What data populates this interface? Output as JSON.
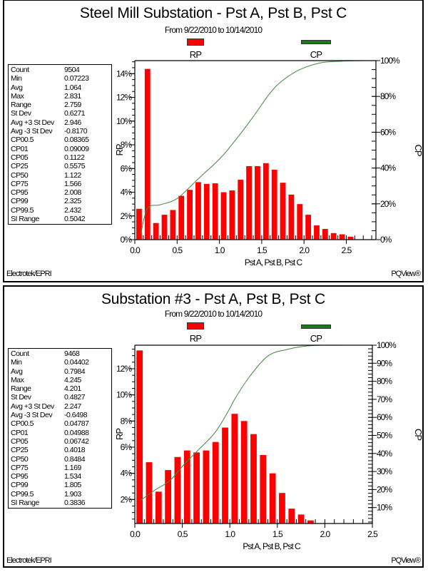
{
  "legend": {
    "rp_label": "RP",
    "cp_label": "CP",
    "rp_color": "#ff0000",
    "cp_color": "#1a7a1a"
  },
  "footer": {
    "left": "Electrotek/EPRI",
    "right": "PQView®"
  },
  "panels": [
    {
      "title": "Steel Mill Substation - Pst A, Pst B, Pst C",
      "subtitle": "From 9/22/2010 to 10/14/2010",
      "stats": [
        {
          "k": "Count",
          "v": "9504"
        },
        {
          "k": "Min",
          "v": "0.07223"
        },
        {
          "k": "Avg",
          "v": "1.064"
        },
        {
          "k": "Max",
          "v": "2.831"
        },
        {
          "k": "Range",
          "v": "2.759"
        },
        {
          "k": "St Dev",
          "v": "0.6271"
        },
        {
          "k": "Avg +3 St Dev",
          "v": "2.946"
        },
        {
          "k": "Avg -3 St Dev",
          "v": "-0.8170"
        },
        {
          "k": "CP00.5",
          "v": "0.08365"
        },
        {
          "k": "CP01",
          "v": "0.09009"
        },
        {
          "k": "CP05",
          "v": "0.1122"
        },
        {
          "k": "CP25",
          "v": "0.5575"
        },
        {
          "k": "CP50",
          "v": "1.122"
        },
        {
          "k": "CP75",
          "v": "1.566"
        },
        {
          "k": "CP95",
          "v": "2.008"
        },
        {
          "k": "CP99",
          "v": "2.325"
        },
        {
          "k": "CP99.5",
          "v": "2.432"
        },
        {
          "k": "SI Range",
          "v": "0.5042"
        }
      ]
    },
    {
      "title": "Substation #3 - Pst A, Pst B, Pst C",
      "subtitle": "From 9/22/2010 to 10/14/2010",
      "stats": [
        {
          "k": "Count",
          "v": "9468"
        },
        {
          "k": "Min",
          "v": "0.04402"
        },
        {
          "k": "Avg",
          "v": "0.7984"
        },
        {
          "k": "Max",
          "v": "4.245"
        },
        {
          "k": "Range",
          "v": "4.201"
        },
        {
          "k": "St Dev",
          "v": "0.4827"
        },
        {
          "k": "Avg +3 St Dev",
          "v": "2.247"
        },
        {
          "k": "Avg -3 St Dev",
          "v": "-0.6498"
        },
        {
          "k": "CP00.5",
          "v": "0.04787"
        },
        {
          "k": "CP01",
          "v": "0.04988"
        },
        {
          "k": "CP05",
          "v": "0.06742"
        },
        {
          "k": "CP25",
          "v": "0.4018"
        },
        {
          "k": "CP50",
          "v": "0.8484"
        },
        {
          "k": "CP75",
          "v": "1.169"
        },
        {
          "k": "CP95",
          "v": "1.534"
        },
        {
          "k": "CP99",
          "v": "1.805"
        },
        {
          "k": "CP99.5",
          "v": "1.903"
        },
        {
          "k": "SI Range",
          "v": "0.3836"
        }
      ]
    }
  ],
  "chart_data": [
    {
      "type": "bar",
      "title": "Steel Mill Substation - Pst A, Pst B, Pst C",
      "subtitle": "From 9/22/2010 to 10/14/2010",
      "xlabel": "Pst A, Pst B, Pst C",
      "ylabel": "RP",
      "y2label": "CP",
      "xlim": [
        0,
        2.85
      ],
      "ylim": [
        0,
        15.1
      ],
      "y2lim": [
        0,
        100
      ],
      "xticks": [
        0.0,
        0.5,
        1.0,
        1.5,
        2.0,
        2.5
      ],
      "xtick_labels": [
        "0.0",
        "0.5",
        "1.0",
        "1.5",
        "2.0",
        "2.5"
      ],
      "yticks": [
        0,
        2,
        4,
        6,
        8,
        10,
        12,
        14
      ],
      "ytick_labels": [
        "0%",
        "2%",
        "4%",
        "6%",
        "8%",
        "10%",
        "12%",
        "14%"
      ],
      "y2ticks": [
        0,
        20,
        40,
        60,
        80,
        100
      ],
      "y2tick_labels": [
        "0%",
        "20%",
        "40%",
        "60%",
        "80%",
        "100%"
      ],
      "y_minor_step": 0.5,
      "y2_minor_step": 5,
      "bin_width": 0.1,
      "legend": "top",
      "series": [
        {
          "name": "RP",
          "kind": "bar",
          "axis": "left",
          "x": [
            0.05,
            0.15,
            0.25,
            0.35,
            0.45,
            0.55,
            0.65,
            0.75,
            0.85,
            0.95,
            1.05,
            1.15,
            1.25,
            1.35,
            1.45,
            1.55,
            1.65,
            1.75,
            1.85,
            1.95,
            2.05,
            2.15,
            2.25,
            2.35,
            2.45,
            2.55
          ],
          "values": [
            2.6,
            14.4,
            1.4,
            2.1,
            2.5,
            3.7,
            4.2,
            4.85,
            4.7,
            4.75,
            4.0,
            4.15,
            5.05,
            6.2,
            6.2,
            6.45,
            5.9,
            4.8,
            3.8,
            3.0,
            2.1,
            1.2,
            0.9,
            0.55,
            0.45,
            0.25
          ]
        },
        {
          "name": "CP",
          "kind": "line",
          "axis": "right",
          "x": [
            0.07,
            0.15,
            0.3,
            0.5,
            0.75,
            1.0,
            1.18,
            1.39,
            1.6,
            1.75,
            1.95,
            2.2,
            2.45,
            2.7,
            2.83
          ],
          "values": [
            3,
            17.5,
            19.5,
            23,
            34,
            45,
            55,
            68,
            82,
            89,
            95,
            98.8,
            99.7,
            100,
            100
          ]
        }
      ]
    },
    {
      "type": "bar",
      "title": "Substation #3 - Pst A, Pst B, Pst C",
      "subtitle": "From 9/22/2010 to 10/14/2010",
      "xlabel": "Pst A, Pst B, Pst C",
      "ylabel": "RP",
      "y2label": "CP",
      "xlim": [
        0,
        2.5
      ],
      "ylim": [
        0,
        13.8
      ],
      "y2lim": [
        0,
        100
      ],
      "xticks": [
        0.0,
        0.5,
        1.0,
        1.5,
        2.0,
        2.5
      ],
      "xtick_labels": [
        "0.0",
        "0.5",
        "1.0",
        "1.5",
        "2.0",
        "2.5"
      ],
      "yticks": [
        2,
        4,
        6,
        8,
        10,
        12
      ],
      "ytick_labels": [
        "2%",
        "4%",
        "6%",
        "8%",
        "10%",
        "12%"
      ],
      "y2ticks": [
        10,
        20,
        30,
        40,
        50,
        60,
        70,
        80,
        90,
        100
      ],
      "y2tick_labels": [
        "10%",
        "20%",
        "30%",
        "40%",
        "50%",
        "60%",
        "70%",
        "80%",
        "90%",
        "100%"
      ],
      "y_minor_step": 0.5,
      "y2_minor_step": 2,
      "bin_width": 0.1,
      "legend": "top",
      "series": [
        {
          "name": "RP",
          "kind": "bar",
          "axis": "left",
          "x": [
            0.05,
            0.15,
            0.25,
            0.35,
            0.45,
            0.55,
            0.65,
            0.75,
            0.85,
            0.95,
            1.05,
            1.15,
            1.25,
            1.35,
            1.45,
            1.55,
            1.65,
            1.75,
            1.85
          ],
          "values": [
            13.4,
            4.85,
            2.6,
            4.25,
            5.25,
            5.75,
            5.6,
            5.75,
            6.4,
            7.5,
            8.55,
            8.0,
            7.0,
            5.4,
            4.0,
            2.5,
            1.3,
            0.85,
            0.4
          ]
        },
        {
          "name": "CP",
          "kind": "line",
          "axis": "right",
          "x": [
            0.06,
            0.22,
            0.37,
            0.52,
            0.67,
            0.85,
            1.0,
            1.05,
            1.2,
            1.4,
            1.6,
            1.8,
            2.0,
            2.2
          ],
          "values": [
            14,
            20,
            25,
            34,
            42,
            52,
            65,
            70,
            82,
            94,
            97.6,
            99.5,
            100,
            100
          ]
        }
      ]
    }
  ]
}
